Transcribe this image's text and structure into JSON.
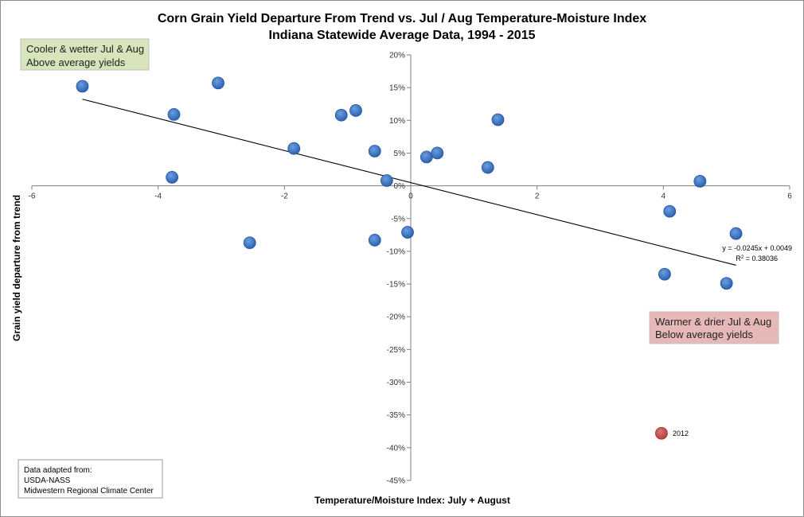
{
  "chart_data": {
    "type": "scatter",
    "title": "Corn Grain Yield Departure From Trend vs. Jul / Aug Temperature-Moisture Index",
    "subtitle": "Indiana Statewide Average Data, 1994 - 2015",
    "xlabel": "Temperature/Moisture Index: July + August",
    "ylabel": "Grain yield departure from trend",
    "xlim": [
      -6,
      6
    ],
    "ylim": [
      -0.45,
      0.2
    ],
    "x_ticks": [
      -6,
      -4,
      -2,
      0,
      2,
      4,
      6
    ],
    "x_tick_labels": [
      "-6",
      "-4",
      "-2",
      "0",
      "2",
      "4",
      "6"
    ],
    "y_ticks": [
      0.2,
      0.15,
      0.1,
      0.05,
      0.0,
      -0.05,
      -0.1,
      -0.15,
      -0.2,
      -0.25,
      -0.3,
      -0.35,
      -0.4,
      -0.45
    ],
    "y_tick_labels": [
      "20%",
      "15%",
      "10%",
      "5%",
      "0%",
      "-5%",
      "-10%",
      "-15%",
      "-20%",
      "-25%",
      "-30%",
      "-35%",
      "-40%",
      "-45%"
    ],
    "grid": false,
    "point_color": "#3a74c2",
    "highlight_color": "#c0504d",
    "points": [
      {
        "x": -5.2,
        "y": 0.152
      },
      {
        "x": -3.05,
        "y": 0.157
      },
      {
        "x": -3.75,
        "y": 0.109
      },
      {
        "x": -3.78,
        "y": 0.013
      },
      {
        "x": -2.55,
        "y": -0.087
      },
      {
        "x": -1.85,
        "y": 0.057
      },
      {
        "x": -1.1,
        "y": 0.108
      },
      {
        "x": -0.87,
        "y": 0.115
      },
      {
        "x": -0.57,
        "y": 0.053
      },
      {
        "x": -0.57,
        "y": -0.083
      },
      {
        "x": -0.38,
        "y": 0.008
      },
      {
        "x": -0.05,
        "y": -0.071
      },
      {
        "x": 0.25,
        "y": 0.044
      },
      {
        "x": 0.42,
        "y": 0.05
      },
      {
        "x": 1.22,
        "y": 0.028
      },
      {
        "x": 1.38,
        "y": 0.101
      },
      {
        "x": 4.1,
        "y": -0.039
      },
      {
        "x": 4.58,
        "y": 0.007
      },
      {
        "x": 4.02,
        "y": -0.135
      },
      {
        "x": 5.0,
        "y": -0.149
      },
      {
        "x": 5.15,
        "y": -0.073
      }
    ],
    "highlight_point": {
      "x": 3.97,
      "y": -0.378,
      "label": "2012"
    },
    "trendline": {
      "slope": -0.0245,
      "intercept": 0.0049,
      "x_range": [
        -5.2,
        5.15
      ],
      "equation": "y = -0.0245x + 0.0049",
      "r2_prefix": "R",
      "r2_exponent": "2",
      "r2_value": " = 0.38036"
    },
    "annotations": {
      "top_left": {
        "lines": [
          "Cooler & wetter Jul & Aug",
          "Above average yields"
        ],
        "fill": "#d8e4bc"
      },
      "bottom_right": {
        "lines": [
          "Warmer & drier Jul & Aug",
          "Below average yields"
        ],
        "fill": "#e6b9b8"
      }
    },
    "source": {
      "lines": [
        "Data adapted from:",
        "USDA-NASS",
        "Midwestern Regional Climate Center"
      ]
    }
  }
}
